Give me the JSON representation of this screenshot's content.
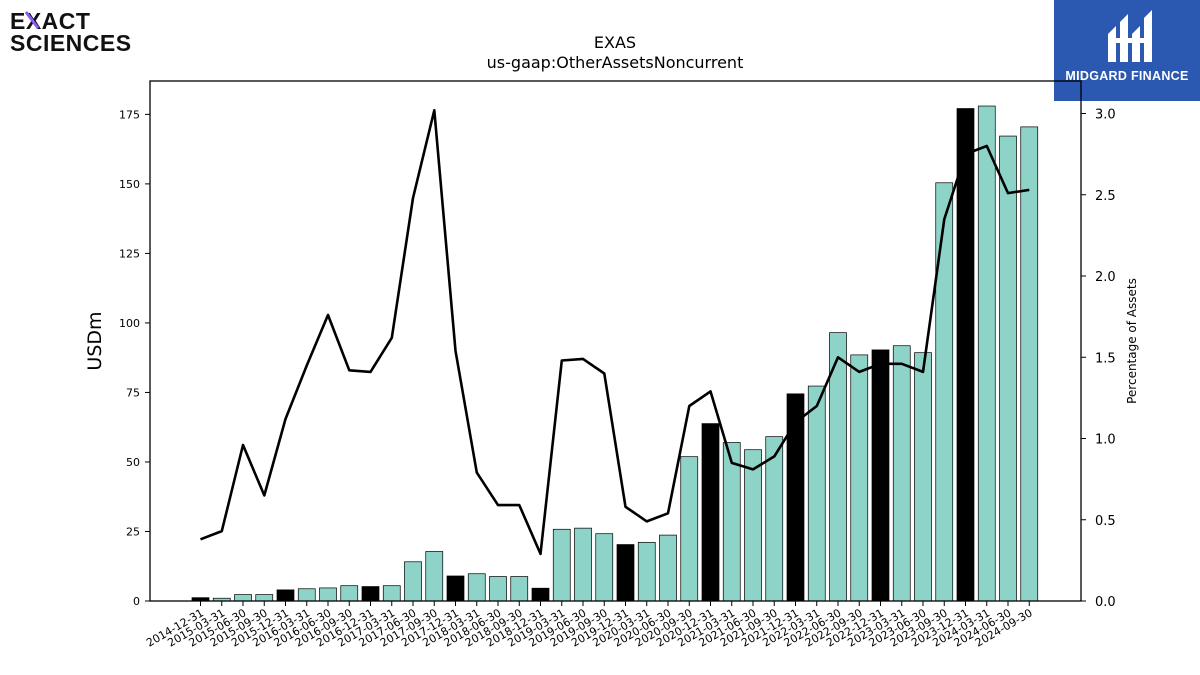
{
  "logos": {
    "left_line1": "EXACT",
    "left_line2": "SCIENCES",
    "right_text": "MIDGARD FINANCE"
  },
  "colors": {
    "bar_annual": "#000000",
    "bar_quarter": "#8dd3c7",
    "line": "#000000",
    "brand_blue": "#2b58b0",
    "brand_purple": "#8a5cf6"
  },
  "chart_data": {
    "type": "bar",
    "title": "EXAS",
    "subtitle": "us-gaap:OtherAssetsNoncurrent",
    "ylabel": "USDm",
    "y2label": "Percentage of Assets",
    "ylim": [
      0,
      187
    ],
    "y2lim": [
      0,
      3.2
    ],
    "yticks": [
      0,
      25,
      50,
      75,
      100,
      125,
      150,
      175
    ],
    "y2ticks": [
      "0.0",
      "0.5",
      "1.0",
      "1.5",
      "2.0",
      "2.5",
      "3.0"
    ],
    "categories": [
      "2014-12-31",
      "2015-03-31",
      "2015-06-30",
      "2015-09-30",
      "2015-12-31",
      "2016-03-31",
      "2016-06-30",
      "2016-09-30",
      "2016-12-31",
      "2017-03-31",
      "2017-06-30",
      "2017-09-30",
      "2017-12-31",
      "2018-03-31",
      "2018-06-30",
      "2018-09-30",
      "2018-12-31",
      "2019-03-31",
      "2019-06-30",
      "2019-09-30",
      "2019-12-31",
      "2020-03-31",
      "2020-06-30",
      "2020-09-30",
      "2020-12-31",
      "2021-03-31",
      "2021-06-30",
      "2021-09-30",
      "2021-12-31",
      "2022-03-31",
      "2022-06-30",
      "2022-09-30",
      "2022-12-31",
      "2023-03-31",
      "2023-06-30",
      "2023-09-30",
      "2023-12-31",
      "2024-03-31",
      "2024-06-30",
      "2024-09-30"
    ],
    "series": [
      {
        "values": [
          1.2,
          1.0,
          2.3,
          2.3,
          4.0,
          4.4,
          4.7,
          5.5,
          5.2,
          5.5,
          14.1,
          17.8,
          9.0,
          9.8,
          8.8,
          8.8,
          4.6,
          25.8,
          26.2,
          24.2,
          20.3,
          21.1,
          23.7,
          51.9,
          63.8,
          57.0,
          54.4,
          59.1,
          74.5,
          77.3,
          96.5,
          88.5,
          90.3,
          91.8,
          89.3,
          150.4,
          177.1,
          178.0,
          167.2,
          170.5
        ],
        "annual": [
          true,
          false,
          false,
          false,
          true,
          false,
          false,
          false,
          true,
          false,
          false,
          false,
          true,
          false,
          false,
          false,
          true,
          false,
          false,
          false,
          true,
          false,
          false,
          false,
          true,
          false,
          false,
          false,
          true,
          false,
          false,
          false,
          true,
          false,
          false,
          false,
          true,
          false,
          false,
          false
        ]
      },
      {
        "axis": "right",
        "values": [
          0.38,
          0.43,
          0.96,
          0.65,
          1.12,
          1.45,
          1.76,
          1.42,
          1.41,
          1.62,
          2.48,
          3.02,
          1.54,
          0.79,
          0.59,
          0.59,
          0.29,
          1.48,
          1.49,
          1.4,
          0.58,
          0.49,
          0.54,
          1.2,
          1.29,
          0.85,
          0.81,
          0.89,
          1.1,
          1.2,
          1.5,
          1.41,
          1.46,
          1.46,
          1.41,
          2.35,
          2.75,
          2.8,
          2.51,
          2.53
        ]
      }
    ]
  }
}
